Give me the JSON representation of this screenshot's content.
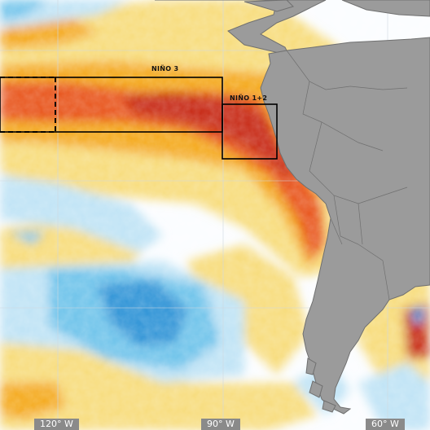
{
  "map": {
    "colors": {
      "ocean_neutral": "#fbfdff",
      "warm_light": "#f7dc7c",
      "warm_mid": "#f4a91e",
      "warm_strong": "#e8541a",
      "warm_extreme": "#c72a13",
      "cool_light": "#bfe3f5",
      "cool_mid": "#6ec3ea",
      "cool_strong": "#2f93d6",
      "land": "#9b9b9b",
      "land_border": "#707070",
      "graticule": "#cfd8e0",
      "region_box": "#000000"
    },
    "regions": [
      {
        "id": "nino-3",
        "label": "NIÑO 3"
      },
      {
        "id": "nino-12",
        "label": "NIÑO 1+2"
      }
    ],
    "longitude_ticks": [
      "120° W",
      "90° W",
      "60° W"
    ]
  }
}
